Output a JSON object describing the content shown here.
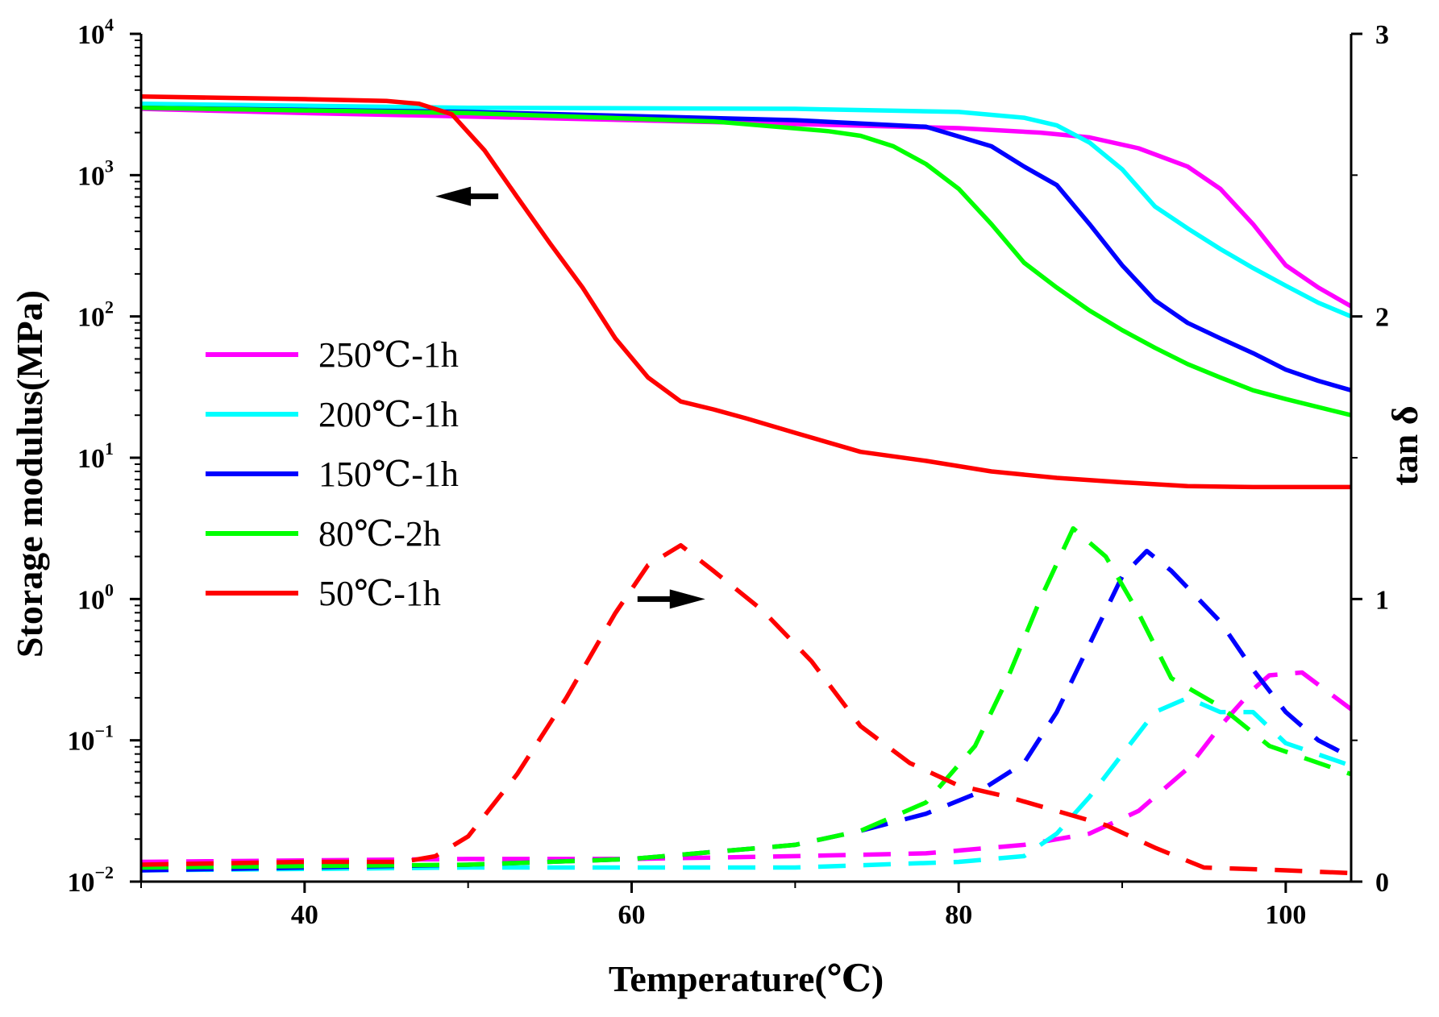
{
  "chart_data": {
    "type": "line",
    "xlabel": "Temperature(℃)",
    "ylabel": "Storage modulus(MPa)",
    "y2label": "tan δ",
    "xlim": [
      30,
      104
    ],
    "ylim_log10": [
      -2,
      4
    ],
    "y2lim": [
      0,
      3
    ],
    "x_ticks": [
      40,
      60,
      80,
      100
    ],
    "y_ticks": [
      {
        "base": "10",
        "exp": "4",
        "value": 4
      },
      {
        "base": "10",
        "exp": "3",
        "value": 3
      },
      {
        "base": "10",
        "exp": "2",
        "value": 2
      },
      {
        "base": "10",
        "exp": "1",
        "value": 1
      },
      {
        "base": "10",
        "exp": "0",
        "value": 0
      },
      {
        "base": "10",
        "exp": "−1",
        "value": -1
      },
      {
        "base": "10",
        "exp": "−2",
        "value": -2
      }
    ],
    "y2_ticks": [
      {
        "label": "3",
        "value": 3
      },
      {
        "label": "2",
        "value": 2
      },
      {
        "label": "1",
        "value": 1
      },
      {
        "label": "0",
        "value": 0
      }
    ],
    "legend_position": "left-middle",
    "series": [
      {
        "name": "250℃-1h",
        "color": "#ff00ff",
        "modulus_MPa": [
          [
            30,
            2950
          ],
          [
            40,
            2750
          ],
          [
            50,
            2600
          ],
          [
            60,
            2450
          ],
          [
            70,
            2300
          ],
          [
            80,
            2150
          ],
          [
            85,
            2000
          ],
          [
            88,
            1850
          ],
          [
            91,
            1550
          ],
          [
            94,
            1150
          ],
          [
            96,
            800
          ],
          [
            98,
            450
          ],
          [
            100,
            230
          ],
          [
            102,
            160
          ],
          [
            104,
            118
          ]
        ],
        "tan_delta": [
          [
            30,
            0.07
          ],
          [
            50,
            0.08
          ],
          [
            60,
            0.08
          ],
          [
            70,
            0.09
          ],
          [
            78,
            0.1
          ],
          [
            84,
            0.13
          ],
          [
            88,
            0.17
          ],
          [
            91,
            0.25
          ],
          [
            94,
            0.4
          ],
          [
            96,
            0.55
          ],
          [
            98,
            0.68
          ],
          [
            99,
            0.73
          ],
          [
            101,
            0.74
          ],
          [
            104,
            0.61
          ]
        ]
      },
      {
        "name": "200℃-1h",
        "color": "#00ffff",
        "modulus_MPa": [
          [
            30,
            3200
          ],
          [
            50,
            3000
          ],
          [
            70,
            2950
          ],
          [
            80,
            2800
          ],
          [
            84,
            2550
          ],
          [
            86,
            2250
          ],
          [
            88,
            1700
          ],
          [
            90,
            1100
          ],
          [
            92,
            600
          ],
          [
            94,
            420
          ],
          [
            96,
            300
          ],
          [
            98,
            220
          ],
          [
            100,
            165
          ],
          [
            102,
            125
          ],
          [
            104,
            100
          ]
        ],
        "tan_delta": [
          [
            30,
            0.04
          ],
          [
            50,
            0.05
          ],
          [
            60,
            0.05
          ],
          [
            70,
            0.05
          ],
          [
            80,
            0.07
          ],
          [
            84,
            0.09
          ],
          [
            86,
            0.17
          ],
          [
            88,
            0.3
          ],
          [
            90,
            0.45
          ],
          [
            92,
            0.6
          ],
          [
            94,
            0.65
          ],
          [
            96,
            0.6
          ],
          [
            98,
            0.6
          ],
          [
            100,
            0.49
          ],
          [
            104,
            0.41
          ]
        ]
      },
      {
        "name": "150℃-1h",
        "color": "#0000ff",
        "modulus_MPa": [
          [
            30,
            3000
          ],
          [
            50,
            2800
          ],
          [
            70,
            2450
          ],
          [
            78,
            2200
          ],
          [
            82,
            1600
          ],
          [
            84,
            1150
          ],
          [
            86,
            850
          ],
          [
            88,
            450
          ],
          [
            90,
            230
          ],
          [
            92,
            130
          ],
          [
            94,
            90
          ],
          [
            96,
            70
          ],
          [
            98,
            55
          ],
          [
            100,
            42
          ],
          [
            102,
            35
          ],
          [
            104,
            30
          ]
        ],
        "tan_delta": [
          [
            30,
            0.04
          ],
          [
            50,
            0.06
          ],
          [
            60,
            0.08
          ],
          [
            70,
            0.13
          ],
          [
            74,
            0.18
          ],
          [
            78,
            0.24
          ],
          [
            81,
            0.31
          ],
          [
            84,
            0.42
          ],
          [
            86,
            0.6
          ],
          [
            88,
            0.84
          ],
          [
            90,
            1.08
          ],
          [
            91.5,
            1.17
          ],
          [
            93,
            1.1
          ],
          [
            96,
            0.92
          ],
          [
            98,
            0.75
          ],
          [
            100,
            0.6
          ],
          [
            102,
            0.5
          ],
          [
            104,
            0.44
          ]
        ]
      },
      {
        "name": "80℃-2h",
        "color": "#00ff00",
        "modulus_MPa": [
          [
            30,
            3000
          ],
          [
            50,
            2750
          ],
          [
            65,
            2400
          ],
          [
            72,
            2050
          ],
          [
            74,
            1900
          ],
          [
            76,
            1600
          ],
          [
            78,
            1200
          ],
          [
            80,
            800
          ],
          [
            82,
            450
          ],
          [
            84,
            240
          ],
          [
            86,
            160
          ],
          [
            88,
            110
          ],
          [
            90,
            80
          ],
          [
            92,
            60
          ],
          [
            94,
            46
          ],
          [
            96,
            37
          ],
          [
            98,
            30
          ],
          [
            100,
            26
          ],
          [
            104,
            20
          ]
        ],
        "tan_delta": [
          [
            30,
            0.05
          ],
          [
            50,
            0.06
          ],
          [
            60,
            0.08
          ],
          [
            70,
            0.13
          ],
          [
            74,
            0.18
          ],
          [
            78,
            0.28
          ],
          [
            81,
            0.48
          ],
          [
            83,
            0.72
          ],
          [
            85,
            1.0
          ],
          [
            87,
            1.25
          ],
          [
            89,
            1.15
          ],
          [
            91,
            0.95
          ],
          [
            93,
            0.72
          ],
          [
            96,
            0.62
          ],
          [
            99,
            0.48
          ],
          [
            104,
            0.38
          ]
        ]
      },
      {
        "name": "50℃-1h",
        "color": "#ff0000",
        "modulus_MPa": [
          [
            30,
            3600
          ],
          [
            40,
            3450
          ],
          [
            45,
            3350
          ],
          [
            47,
            3200
          ],
          [
            49,
            2700
          ],
          [
            51,
            1500
          ],
          [
            53,
            700
          ],
          [
            55,
            330
          ],
          [
            57,
            160
          ],
          [
            59,
            70
          ],
          [
            61,
            37
          ],
          [
            63,
            25
          ],
          [
            65,
            22
          ],
          [
            67,
            19
          ],
          [
            70,
            15
          ],
          [
            74,
            11
          ],
          [
            78,
            9.5
          ],
          [
            82,
            8
          ],
          [
            86,
            7.2
          ],
          [
            90,
            6.7
          ],
          [
            94,
            6.3
          ],
          [
            98,
            6.2
          ],
          [
            104,
            6.2
          ]
        ],
        "tan_delta": [
          [
            30,
            0.06
          ],
          [
            40,
            0.07
          ],
          [
            46,
            0.07
          ],
          [
            48,
            0.09
          ],
          [
            50,
            0.16
          ],
          [
            53,
            0.38
          ],
          [
            56,
            0.65
          ],
          [
            59,
            0.95
          ],
          [
            61,
            1.12
          ],
          [
            63,
            1.19
          ],
          [
            65,
            1.1
          ],
          [
            68,
            0.96
          ],
          [
            71,
            0.78
          ],
          [
            74,
            0.55
          ],
          [
            77,
            0.42
          ],
          [
            80,
            0.34
          ],
          [
            83,
            0.3
          ],
          [
            86,
            0.25
          ],
          [
            89,
            0.2
          ],
          [
            92,
            0.12
          ],
          [
            95,
            0.05
          ],
          [
            100,
            0.04
          ],
          [
            104,
            0.03
          ]
        ]
      }
    ],
    "annotations": [
      {
        "name": "left-arrow",
        "points_to": "left axis",
        "x": 48,
        "y_log10": 2.85
      },
      {
        "name": "right-arrow",
        "points_to": "right axis",
        "x": 64.5,
        "tan_delta": 1.0
      }
    ]
  }
}
